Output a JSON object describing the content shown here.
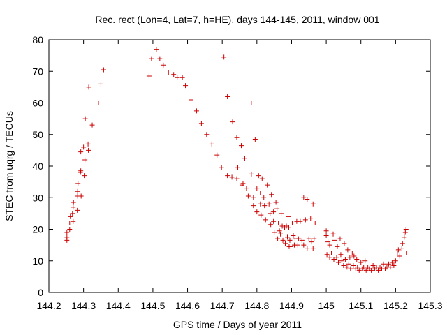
{
  "chart_data": {
    "type": "scatter",
    "title": "Rec. rect (Lon=4, Lat=7, h=HE), days 144-145, 2011, window 001",
    "xlabel": "GPS time / Days of year 2011",
    "ylabel": "STEC from uqrg / TECUs",
    "xlim": [
      144.2,
      145.3
    ],
    "ylim": [
      0,
      80
    ],
    "xticks": [
      "144.2",
      "144.3",
      "144.4",
      "144.5",
      "144.6",
      "144.7",
      "144.8",
      "144.9",
      "145",
      "145.1",
      "145.2",
      "145.3"
    ],
    "yticks": [
      "0",
      "10",
      "20",
      "30",
      "40",
      "50",
      "60",
      "70",
      "80"
    ],
    "grid": false,
    "legend": "none",
    "marker": "plus",
    "color": "#cc0000",
    "points": [
      [
        144.252,
        16.5
      ],
      [
        144.252,
        17.5
      ],
      [
        144.252,
        19
      ],
      [
        144.26,
        20
      ],
      [
        144.26,
        22
      ],
      [
        144.262,
        24
      ],
      [
        144.268,
        25
      ],
      [
        144.27,
        27
      ],
      [
        144.271,
        28.5
      ],
      [
        144.27,
        22.5
      ],
      [
        144.282,
        26
      ],
      [
        144.283,
        30.5
      ],
      [
        144.283,
        32
      ],
      [
        144.284,
        34.5
      ],
      [
        144.291,
        38
      ],
      [
        144.292,
        38.5
      ],
      [
        144.292,
        44.5
      ],
      [
        144.293,
        30.5
      ],
      [
        144.3,
        46
      ],
      [
        144.302,
        37
      ],
      [
        144.304,
        42
      ],
      [
        144.305,
        55
      ],
      [
        144.313,
        47
      ],
      [
        144.314,
        45
      ],
      [
        144.315,
        65
      ],
      [
        144.325,
        53
      ],
      [
        144.343,
        60
      ],
      [
        144.35,
        66
      ],
      [
        144.358,
        70.5
      ],
      [
        144.489,
        68.5
      ],
      [
        144.496,
        74
      ],
      [
        144.51,
        77
      ],
      [
        144.52,
        74
      ],
      [
        144.53,
        72
      ],
      [
        144.545,
        69.5
      ],
      [
        144.56,
        69
      ],
      [
        144.57,
        68
      ],
      [
        144.585,
        68
      ],
      [
        144.594,
        65.5
      ],
      [
        144.61,
        61
      ],
      [
        144.626,
        57.5
      ],
      [
        144.64,
        53.5
      ],
      [
        144.655,
        50
      ],
      [
        144.67,
        47
      ],
      [
        144.685,
        43.5
      ],
      [
        144.698,
        39.5
      ],
      [
        144.705,
        74.5
      ],
      [
        144.715,
        62
      ],
      [
        144.715,
        37
      ],
      [
        144.73,
        54
      ],
      [
        144.728,
        36.5
      ],
      [
        144.742,
        49
      ],
      [
        144.742,
        36
      ],
      [
        144.745,
        39.5
      ],
      [
        144.755,
        46.5
      ],
      [
        144.757,
        34
      ],
      [
        144.76,
        34.5
      ],
      [
        144.765,
        42.5
      ],
      [
        144.77,
        33
      ],
      [
        144.775,
        30.5
      ],
      [
        144.784,
        60
      ],
      [
        144.784,
        37.5
      ],
      [
        144.79,
        30
      ],
      [
        144.79,
        27.5
      ],
      [
        144.795,
        48.5
      ],
      [
        144.8,
        33
      ],
      [
        144.8,
        25.5
      ],
      [
        144.805,
        37
      ],
      [
        144.81,
        31.5
      ],
      [
        144.81,
        28
      ],
      [
        144.812,
        24.5
      ],
      [
        144.815,
        36
      ],
      [
        144.82,
        30
      ],
      [
        144.822,
        27.5
      ],
      [
        144.825,
        23
      ],
      [
        144.83,
        34
      ],
      [
        144.835,
        28
      ],
      [
        144.838,
        25
      ],
      [
        144.84,
        21.5
      ],
      [
        144.842,
        31
      ],
      [
        144.848,
        25.5
      ],
      [
        144.848,
        22.5
      ],
      [
        144.85,
        19
      ],
      [
        144.855,
        28.5
      ],
      [
        144.858,
        26.5
      ],
      [
        144.86,
        17
      ],
      [
        144.862,
        22
      ],
      [
        144.865,
        19.5
      ],
      [
        144.868,
        18.5
      ],
      [
        144.87,
        25
      ],
      [
        144.873,
        21
      ],
      [
        144.875,
        16.5
      ],
      [
        144.88,
        20.5
      ],
      [
        144.882,
        15.5
      ],
      [
        144.885,
        21
      ],
      [
        144.888,
        17.5
      ],
      [
        144.89,
        24
      ],
      [
        144.892,
        20.5
      ],
      [
        144.893,
        14.5
      ],
      [
        144.895,
        16.5
      ],
      [
        144.898,
        14.5
      ],
      [
        144.902,
        22
      ],
      [
        144.905,
        18
      ],
      [
        144.908,
        15
      ],
      [
        144.91,
        17
      ],
      [
        144.915,
        22.5
      ],
      [
        144.918,
        15
      ],
      [
        144.92,
        17
      ],
      [
        144.925,
        22.5
      ],
      [
        144.93,
        16.5
      ],
      [
        144.935,
        30
      ],
      [
        144.935,
        15
      ],
      [
        144.94,
        23
      ],
      [
        144.945,
        29.5
      ],
      [
        144.945,
        14
      ],
      [
        144.95,
        17
      ],
      [
        144.955,
        23.5
      ],
      [
        144.958,
        16
      ],
      [
        144.962,
        28
      ],
      [
        144.962,
        14
      ],
      [
        144.965,
        17
      ],
      [
        144.968,
        22
      ],
      [
        145.0,
        19.5
      ],
      [
        145.0,
        18
      ],
      [
        145.002,
        12
      ],
      [
        145.005,
        16
      ],
      [
        145.01,
        15
      ],
      [
        145.01,
        11
      ],
      [
        145.015,
        12.5
      ],
      [
        145.02,
        18.5
      ],
      [
        145.022,
        10.5
      ],
      [
        145.025,
        16.5
      ],
      [
        145.03,
        11
      ],
      [
        145.032,
        14.5
      ],
      [
        145.035,
        9.5
      ],
      [
        145.04,
        17
      ],
      [
        145.042,
        12
      ],
      [
        145.045,
        10
      ],
      [
        145.05,
        8.5
      ],
      [
        145.052,
        15.5
      ],
      [
        145.055,
        10.5
      ],
      [
        145.06,
        8
      ],
      [
        145.062,
        13.5
      ],
      [
        145.065,
        9
      ],
      [
        145.068,
        11
      ],
      [
        145.07,
        7.5
      ],
      [
        145.075,
        12.5
      ],
      [
        145.078,
        8.5
      ],
      [
        145.08,
        11.5
      ],
      [
        145.085,
        7.5
      ],
      [
        145.088,
        10.5
      ],
      [
        145.09,
        8
      ],
      [
        145.095,
        7
      ],
      [
        145.1,
        9.5
      ],
      [
        145.105,
        7.5
      ],
      [
        145.108,
        8
      ],
      [
        145.112,
        10
      ],
      [
        145.115,
        7
      ],
      [
        145.12,
        8
      ],
      [
        145.125,
        7.5
      ],
      [
        145.13,
        7
      ],
      [
        145.135,
        8.5
      ],
      [
        145.14,
        7.5
      ],
      [
        145.145,
        8
      ],
      [
        145.15,
        7
      ],
      [
        145.155,
        8
      ],
      [
        145.16,
        7.5
      ],
      [
        145.165,
        9
      ],
      [
        145.17,
        7.5
      ],
      [
        145.175,
        8
      ],
      [
        145.18,
        9
      ],
      [
        145.185,
        8
      ],
      [
        145.19,
        9.5
      ],
      [
        145.195,
        8.5
      ],
      [
        145.2,
        10
      ],
      [
        145.205,
        12.5
      ],
      [
        145.208,
        13.5
      ],
      [
        145.212,
        11.5
      ],
      [
        145.218,
        14
      ],
      [
        145.22,
        15.5
      ],
      [
        145.225,
        17.5
      ],
      [
        145.228,
        19
      ],
      [
        145.23,
        20
      ],
      [
        145.232,
        12.5
      ]
    ]
  }
}
